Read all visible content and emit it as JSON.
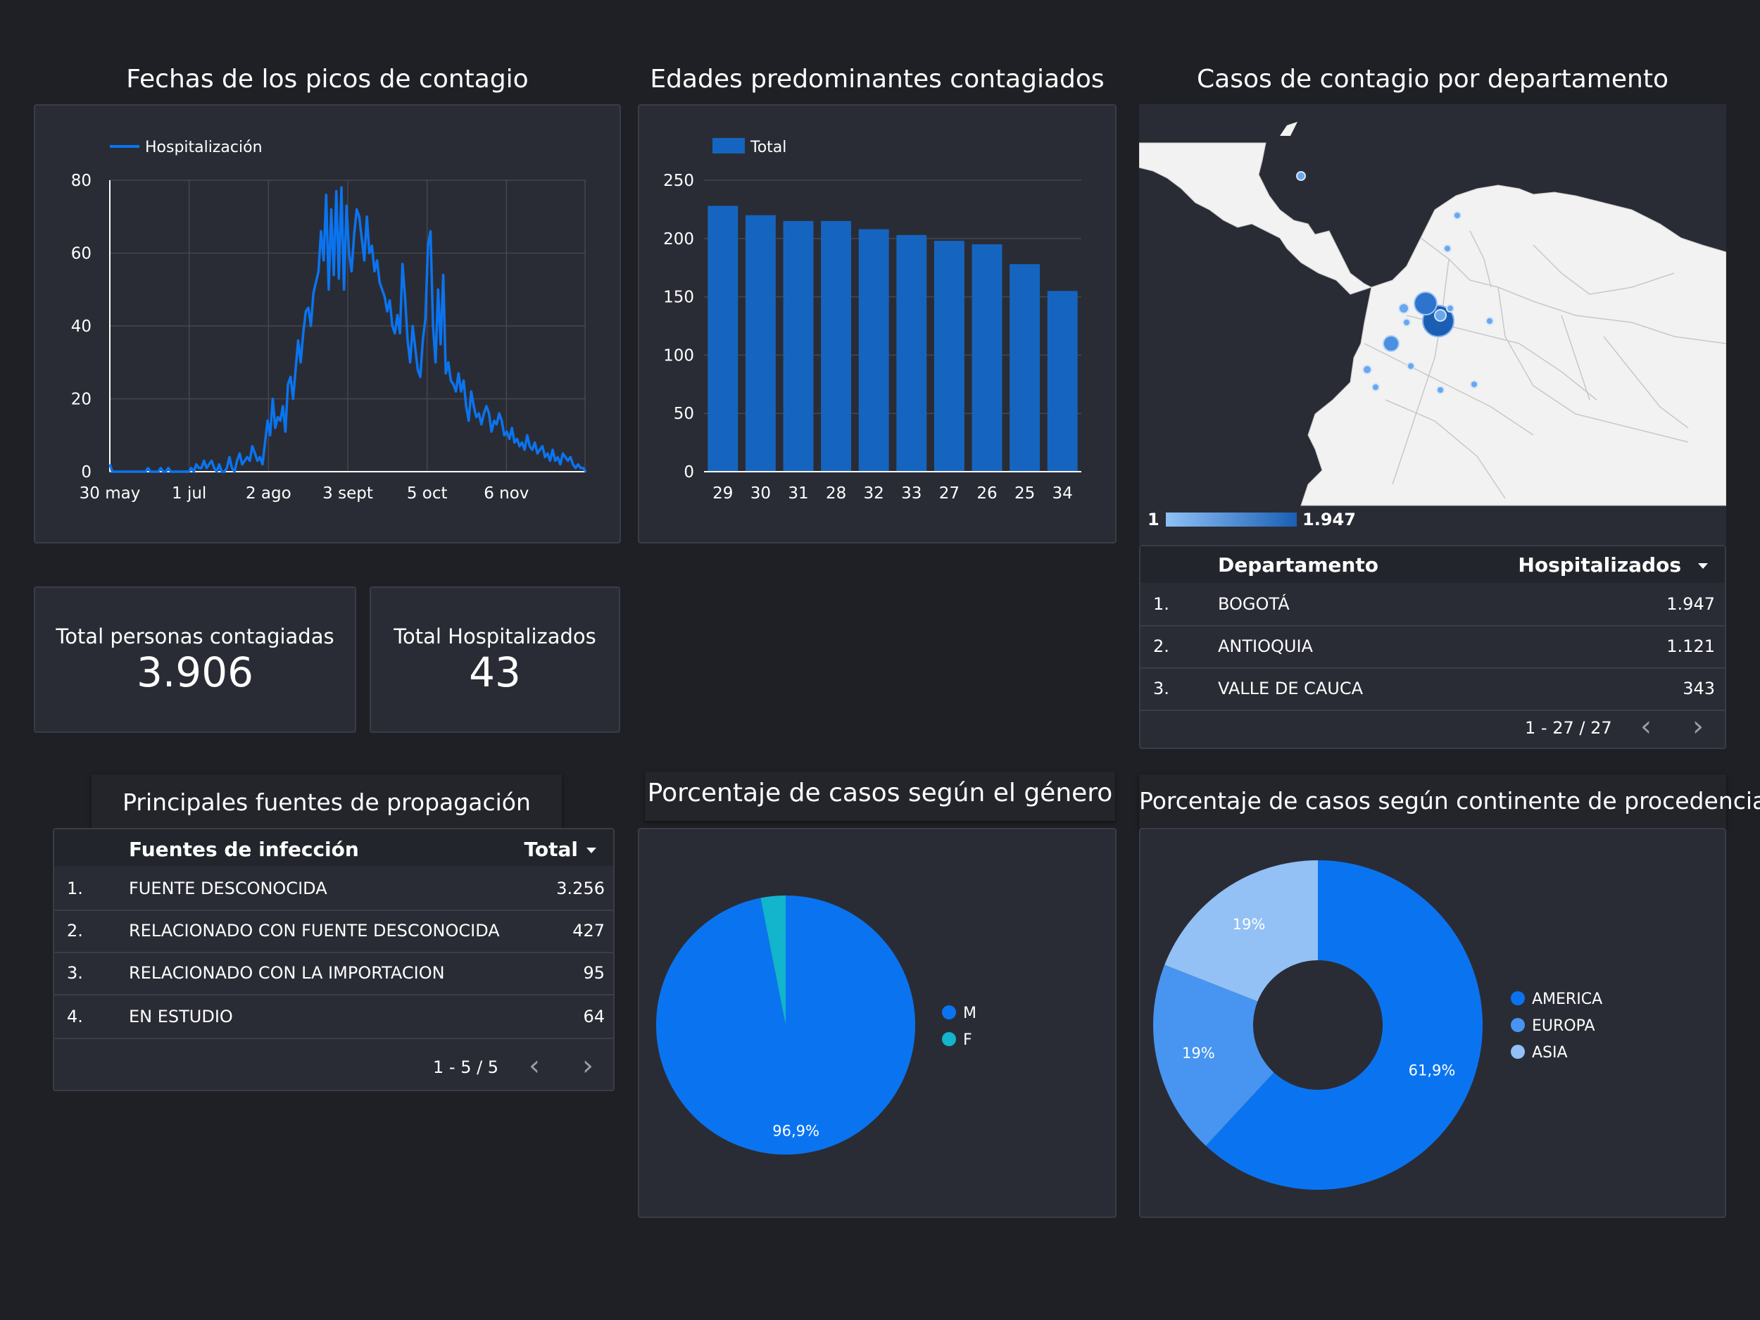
{
  "colors": {
    "background": "#1f2025",
    "panel": "#2a2c35",
    "blue": "#0a74f0",
    "bar": "#1565c0",
    "teal": "#12b5cb",
    "mid_blue": "#4795f0",
    "light_blue": "#93c0f5"
  },
  "line_chart": {
    "title": "Fechas  de los picos de contagio",
    "chart_data": {
      "type": "line",
      "legend": "Hospitalización",
      "legend_position": "top-left",
      "x_labels": [
        "30 may",
        "1 jul",
        "2 ago",
        "3 sept",
        "5 oct",
        "6 nov"
      ],
      "y_ticks": [
        0,
        20,
        40,
        60,
        80
      ],
      "ylim": [
        0,
        80
      ],
      "grid": true,
      "series": [
        {
          "name": "Hospitalización",
          "values": [
            2,
            0,
            0,
            0,
            0,
            0,
            0,
            0,
            0,
            0,
            0,
            0,
            0,
            0,
            0,
            1,
            0,
            0,
            0,
            0,
            1,
            0,
            0,
            1,
            0,
            0,
            0,
            0,
            0,
            0,
            0,
            0,
            1,
            0,
            2,
            1,
            1,
            3,
            1,
            2,
            3,
            1,
            0,
            2,
            0,
            0,
            1,
            4,
            1,
            0,
            3,
            5,
            2,
            3,
            4,
            3,
            7,
            5,
            3,
            4,
            2,
            8,
            14,
            10,
            20,
            12,
            15,
            14,
            18,
            11,
            24,
            26,
            20,
            28,
            36,
            30,
            38,
            44,
            45,
            40,
            49,
            52,
            55,
            66,
            58,
            76,
            50,
            72,
            54,
            77,
            53,
            78,
            50,
            73,
            60,
            55,
            65,
            72,
            70,
            64,
            58,
            70,
            60,
            62,
            55,
            58,
            52,
            50,
            48,
            44,
            47,
            40,
            38,
            43,
            38,
            57,
            48,
            36,
            30,
            40,
            34,
            28,
            26,
            36,
            42,
            62,
            66,
            40,
            30,
            50,
            35,
            54,
            27,
            30,
            25,
            24,
            22,
            27,
            22,
            25,
            18,
            14,
            22,
            18,
            15,
            16,
            13,
            16,
            18,
            16,
            11,
            14,
            13,
            16,
            14,
            10,
            11,
            9,
            12,
            8,
            9,
            7,
            8,
            6,
            10,
            7,
            6,
            8,
            5,
            6,
            7,
            4,
            5,
            3,
            6,
            3,
            4,
            2,
            5,
            4,
            3,
            4,
            2,
            1,
            2,
            1,
            1,
            0
          ]
        }
      ]
    }
  },
  "bar_chart": {
    "title": "Edades predominantes contagiados",
    "chart_data": {
      "type": "bar",
      "legend": "Total",
      "categories": [
        "29",
        "30",
        "31",
        "28",
        "32",
        "33",
        "27",
        "26",
        "25",
        "34"
      ],
      "values": [
        228,
        220,
        215,
        215,
        208,
        203,
        198,
        195,
        178,
        155
      ],
      "y_ticks": [
        0,
        50,
        100,
        150,
        200,
        250
      ],
      "ylim": [
        0,
        250
      ]
    }
  },
  "map": {
    "title": "Casos de contagio por departamento",
    "scale_min": "1",
    "scale_max": "1.947"
  },
  "dept_table": {
    "col1": "Departamento",
    "col2": "Hospitalizados",
    "rows": [
      {
        "n": "1.",
        "name": "BOGOTÁ",
        "value": "1.947"
      },
      {
        "n": "2.",
        "name": "ANTIOQUIA",
        "value": "1.121"
      },
      {
        "n": "3.",
        "name": "VALLE DE CAUCA",
        "value": "343"
      }
    ],
    "pager": "1 - 27 / 27"
  },
  "kpi": [
    {
      "label": "Total personas contagiadas",
      "value": "3.906"
    },
    {
      "label": "Total Hospitalizados",
      "value": "43"
    }
  ],
  "sources_table": {
    "title": "Principales fuentes de propagación",
    "col1": "Fuentes de infección",
    "col2": "Total",
    "rows": [
      {
        "n": "1.",
        "name": "FUENTE DESCONOCIDA",
        "value": "3.256"
      },
      {
        "n": "2.",
        "name": "RELACIONADO CON FUENTE DESCONOCIDA",
        "value": "427"
      },
      {
        "n": "3.",
        "name": "RELACIONADO CON LA IMPORTACION",
        "value": "95"
      },
      {
        "n": "4.",
        "name": "EN ESTUDIO",
        "value": "64"
      }
    ],
    "pager": "1 - 5 / 5"
  },
  "gender_pie": {
    "title": "Porcentaje de casos según el género",
    "chart_data": {
      "type": "pie",
      "slices": [
        {
          "label": "M",
          "value": 96.9,
          "display": "96,9%",
          "color": "#0a74f0"
        },
        {
          "label": "F",
          "value": 3.1,
          "display": "",
          "color": "#12b5cb"
        }
      ]
    }
  },
  "continent_donut": {
    "title": "Porcentaje de casos según continente de procedencia",
    "chart_data": {
      "type": "pie",
      "slices": [
        {
          "label": "AMERICA",
          "value": 61.9,
          "display": "61,9%",
          "color": "#0a74f0"
        },
        {
          "label": "EUROPA",
          "value": 19.05,
          "display": "19%",
          "color": "#4795f0"
        },
        {
          "label": "ASIA",
          "value": 19.05,
          "display": "19%",
          "color": "#93c0f5"
        }
      ]
    }
  }
}
